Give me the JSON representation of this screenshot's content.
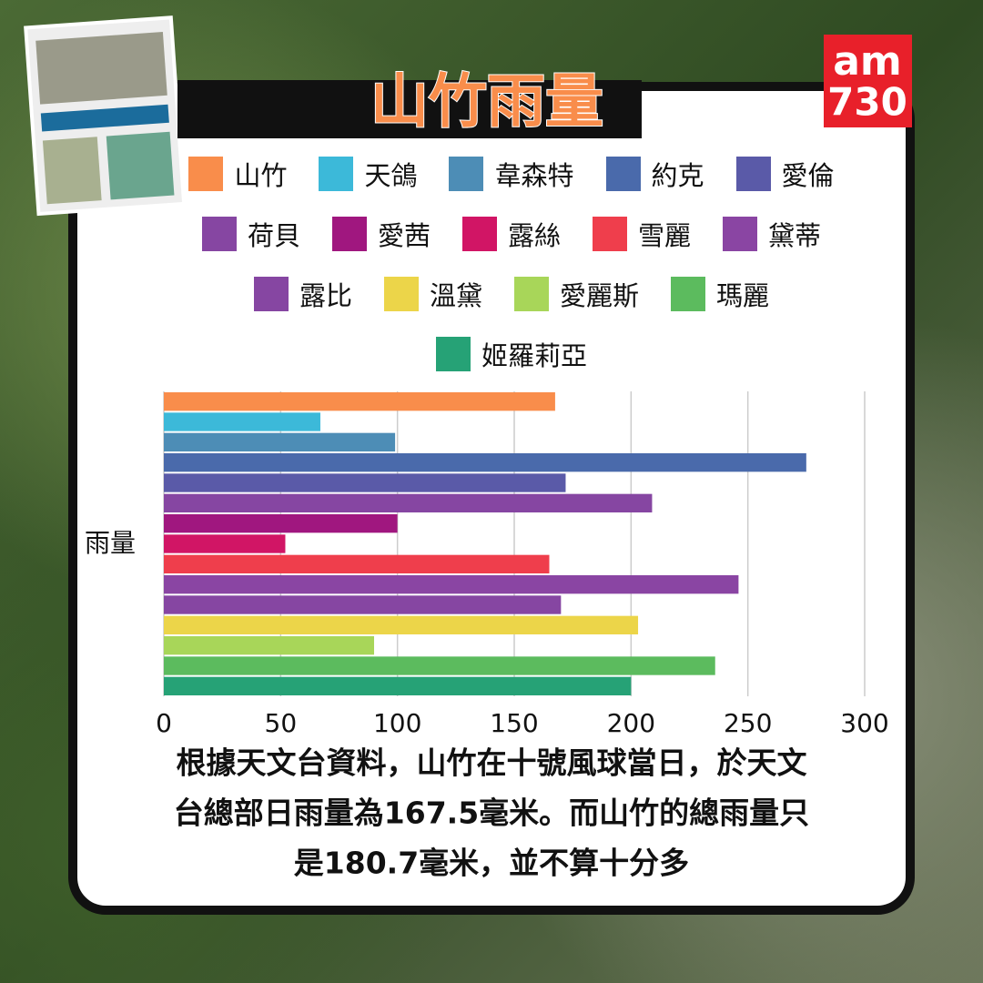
{
  "logo": {
    "top": "am",
    "bottom": "730"
  },
  "chart_data": {
    "type": "bar",
    "orientation": "horizontal",
    "title": "山竹雨量",
    "categories": [
      "雨量"
    ],
    "series": [
      {
        "name": "山竹",
        "color": "#f98d4b",
        "values": [
          167.5
        ]
      },
      {
        "name": "天鴿",
        "color": "#3cb9d9",
        "values": [
          67
        ]
      },
      {
        "name": "韋森特",
        "color": "#4d8db6",
        "values": [
          99
        ]
      },
      {
        "name": "約克",
        "color": "#4a6aab",
        "values": [
          275
        ]
      },
      {
        "name": "愛倫",
        "color": "#5a5aa8",
        "values": [
          172
        ]
      },
      {
        "name": "荷貝",
        "color": "#8646a2",
        "values": [
          209
        ]
      },
      {
        "name": "愛茜",
        "color": "#a0177f",
        "values": [
          100
        ]
      },
      {
        "name": "露絲",
        "color": "#d11565",
        "values": [
          52
        ]
      },
      {
        "name": "雪麗",
        "color": "#ef3e4c",
        "values": [
          165
        ]
      },
      {
        "name": "黛蒂",
        "color": "#8a45a3",
        "values": [
          246
        ]
      },
      {
        "name": "露比",
        "color": "#8646a2",
        "values": [
          170
        ]
      },
      {
        "name": "溫黛",
        "color": "#ecd549",
        "values": [
          203
        ]
      },
      {
        "name": "愛麗斯",
        "color": "#a8d659",
        "values": [
          90
        ]
      },
      {
        "name": "瑪麗",
        "color": "#5cbb5e",
        "values": [
          236
        ]
      },
      {
        "name": "姬羅莉亞",
        "color": "#26a276",
        "values": [
          200
        ]
      }
    ],
    "xlim": [
      0,
      300
    ],
    "xticks": [
      0,
      50,
      100,
      150,
      200,
      250,
      300
    ],
    "grid": true,
    "note": [
      "根據天文台資料，山竹在十號風球當日，於天文",
      "台總部日雨量為167.5毫米。而山竹的總雨量只",
      "是180.7毫米，並不算十分多"
    ]
  }
}
